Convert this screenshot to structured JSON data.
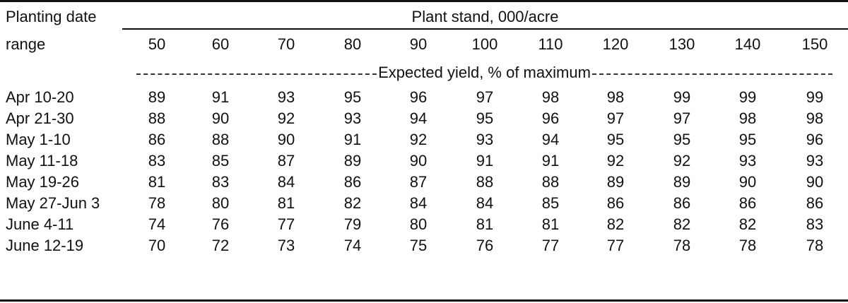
{
  "table": {
    "row_header_line1": "Planting date",
    "row_header_line2": "range",
    "stand_header": "Plant stand, 000/acre",
    "subheader": "Expected yield, % of maximum",
    "columns": [
      "50",
      "60",
      "70",
      "80",
      "90",
      "100",
      "110",
      "120",
      "130",
      "140",
      "150"
    ],
    "rows": [
      {
        "label": "Apr 10-20",
        "values": [
          "89",
          "91",
          "93",
          "95",
          "96",
          "97",
          "98",
          "98",
          "99",
          "99",
          "99"
        ]
      },
      {
        "label": "Apr 21-30",
        "values": [
          "88",
          "90",
          "92",
          "93",
          "94",
          "95",
          "96",
          "97",
          "97",
          "98",
          "98"
        ]
      },
      {
        "label": "May 1-10",
        "values": [
          "86",
          "88",
          "90",
          "91",
          "92",
          "93",
          "94",
          "95",
          "95",
          "95",
          "96"
        ]
      },
      {
        "label": "May 11-18",
        "values": [
          "83",
          "85",
          "87",
          "89",
          "90",
          "91",
          "91",
          "92",
          "92",
          "93",
          "93"
        ]
      },
      {
        "label": "May 19-26",
        "values": [
          "81",
          "83",
          "84",
          "86",
          "87",
          "88",
          "88",
          "89",
          "89",
          "90",
          "90"
        ]
      },
      {
        "label": "May 27-Jun 3",
        "values": [
          "78",
          "80",
          "81",
          "82",
          "84",
          "84",
          "85",
          "86",
          "86",
          "86",
          "86"
        ]
      },
      {
        "label": "June 4-11",
        "values": [
          "74",
          "76",
          "77",
          "79",
          "80",
          "81",
          "81",
          "82",
          "82",
          "82",
          "83"
        ]
      },
      {
        "label": "June 12-19",
        "values": [
          "70",
          "72",
          "73",
          "74",
          "75",
          "76",
          "77",
          "77",
          "78",
          "78",
          "78"
        ]
      }
    ]
  }
}
